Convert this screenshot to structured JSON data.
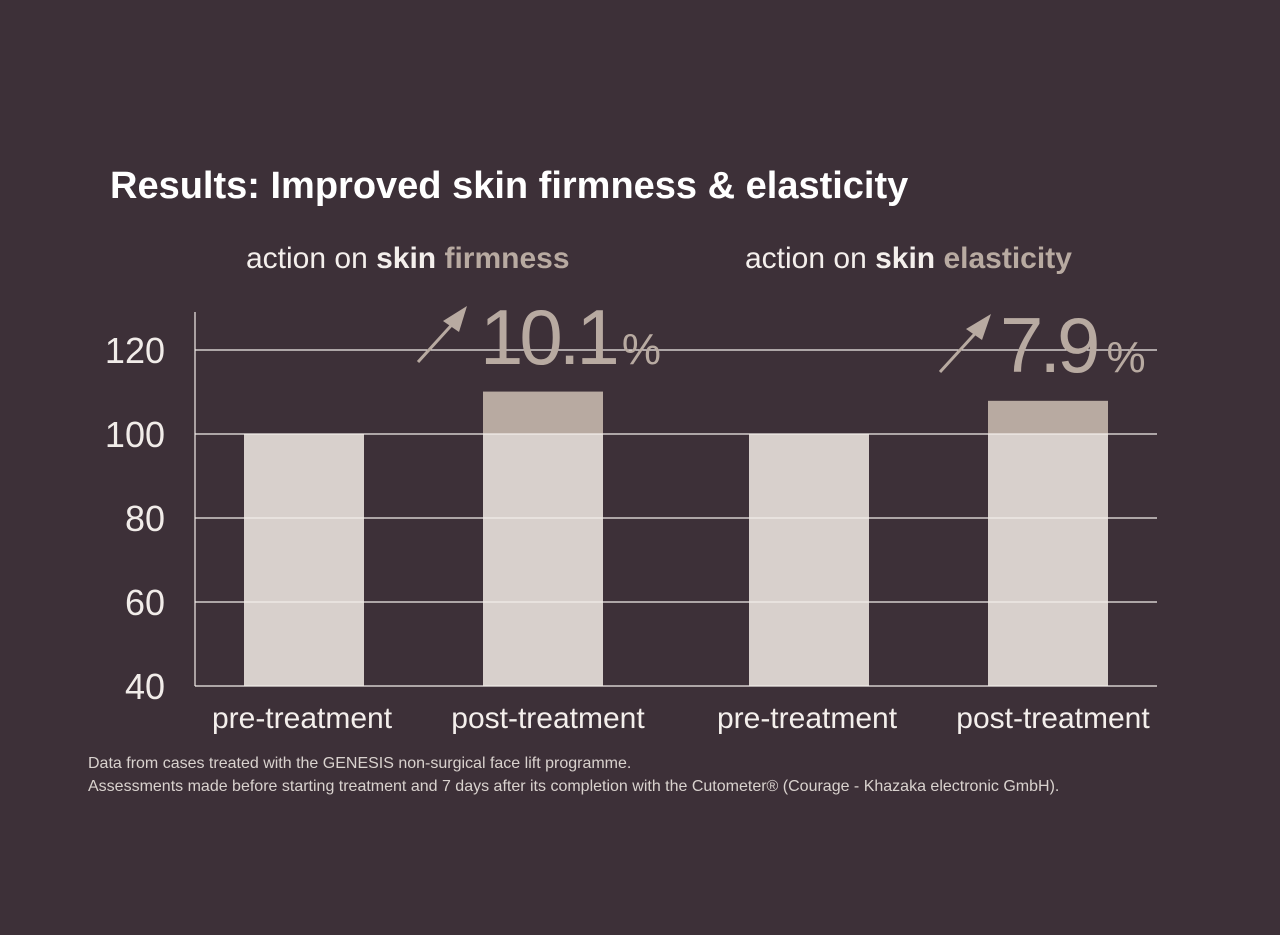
{
  "colors": {
    "background": "#3d3038",
    "base_bar": "#d8d0cc",
    "increase_bar": "#b8aaa1",
    "accent_text": "#b8aaa1",
    "grid": "#f2ece9"
  },
  "chart_data": {
    "type": "bar",
    "title": "Results: Improved skin firmness & elasticity",
    "ylim": [
      40,
      128
    ],
    "yticks": [
      40,
      60,
      80,
      100,
      120
    ],
    "grid": true,
    "groups": [
      {
        "subtitle_prefix": "action on ",
        "subtitle_bold": "skin",
        "subtitle_accent": "firmness",
        "categories": [
          "pre-treatment",
          "post-treatment"
        ],
        "values": [
          100,
          110.1
        ],
        "increase_label": "10.1",
        "increase_unit": "%"
      },
      {
        "subtitle_prefix": "action on ",
        "subtitle_bold": "skin",
        "subtitle_accent": "elasticity",
        "categories": [
          "pre-treatment",
          "post-treatment"
        ],
        "values": [
          100,
          107.9
        ],
        "increase_label": "7.9",
        "increase_unit": "%"
      }
    ],
    "notes": [
      "Data from cases treated with the GENESIS non-surgical face lift programme.",
      "Assessments made before starting treatment and 7 days after its completion with the Cutometer® (Courage - Khazaka electronic GmbH)."
    ]
  }
}
